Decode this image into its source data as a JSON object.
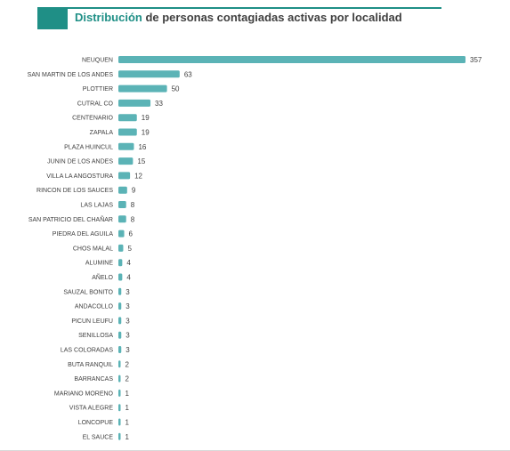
{
  "title": {
    "highlight": "Distribución",
    "rest": " de personas contagiadas activas por localidad"
  },
  "colors": {
    "bar": "#5bb3b6",
    "accent": "#1f8f86",
    "text": "#404040"
  },
  "chart_data": {
    "type": "bar",
    "orientation": "horizontal",
    "title": "Distribución de personas contagiadas activas por localidad",
    "categories": [
      "NEUQUEN",
      "SAN MARTIN DE LOS ANDES",
      "PLOTTIER",
      "CUTRAL CO",
      "CENTENARIO",
      "ZAPALA",
      "PLAZA HUINCUL",
      "JUNIN DE LOS ANDES",
      "VILLA LA ANGOSTURA",
      "RINCON DE LOS SAUCES",
      "LAS LAJAS",
      "SAN PATRICIO DEL CHAÑAR",
      "PIEDRA DEL AGUILA",
      "CHOS MALAL",
      "ALUMINE",
      "AÑELO",
      "SAUZAL BONITO",
      "ANDACOLLO",
      "PICUN LEUFU",
      "SENILLOSA",
      "LAS COLORADAS",
      "BUTA RANQUIL",
      "BARRANCAS",
      "MARIANO MORENO",
      "VISTA ALEGRE",
      "LONCOPUE",
      "EL SAUCE"
    ],
    "values": [
      357,
      63,
      50,
      33,
      19,
      19,
      16,
      15,
      12,
      9,
      8,
      8,
      6,
      5,
      4,
      4,
      3,
      3,
      3,
      3,
      3,
      2,
      2,
      1,
      1,
      1,
      1
    ],
    "value_labels": [
      "357",
      "63",
      "50",
      "33",
      "19",
      "19",
      "16",
      "15",
      "12",
      "9",
      "8",
      "8",
      "6",
      "5",
      "4",
      "4",
      "3",
      "3",
      "3",
      "3",
      "3",
      "2",
      "2",
      "1",
      "1",
      "1",
      "1"
    ],
    "xlim": [
      0,
      357
    ],
    "grid": false,
    "legend": "none"
  }
}
